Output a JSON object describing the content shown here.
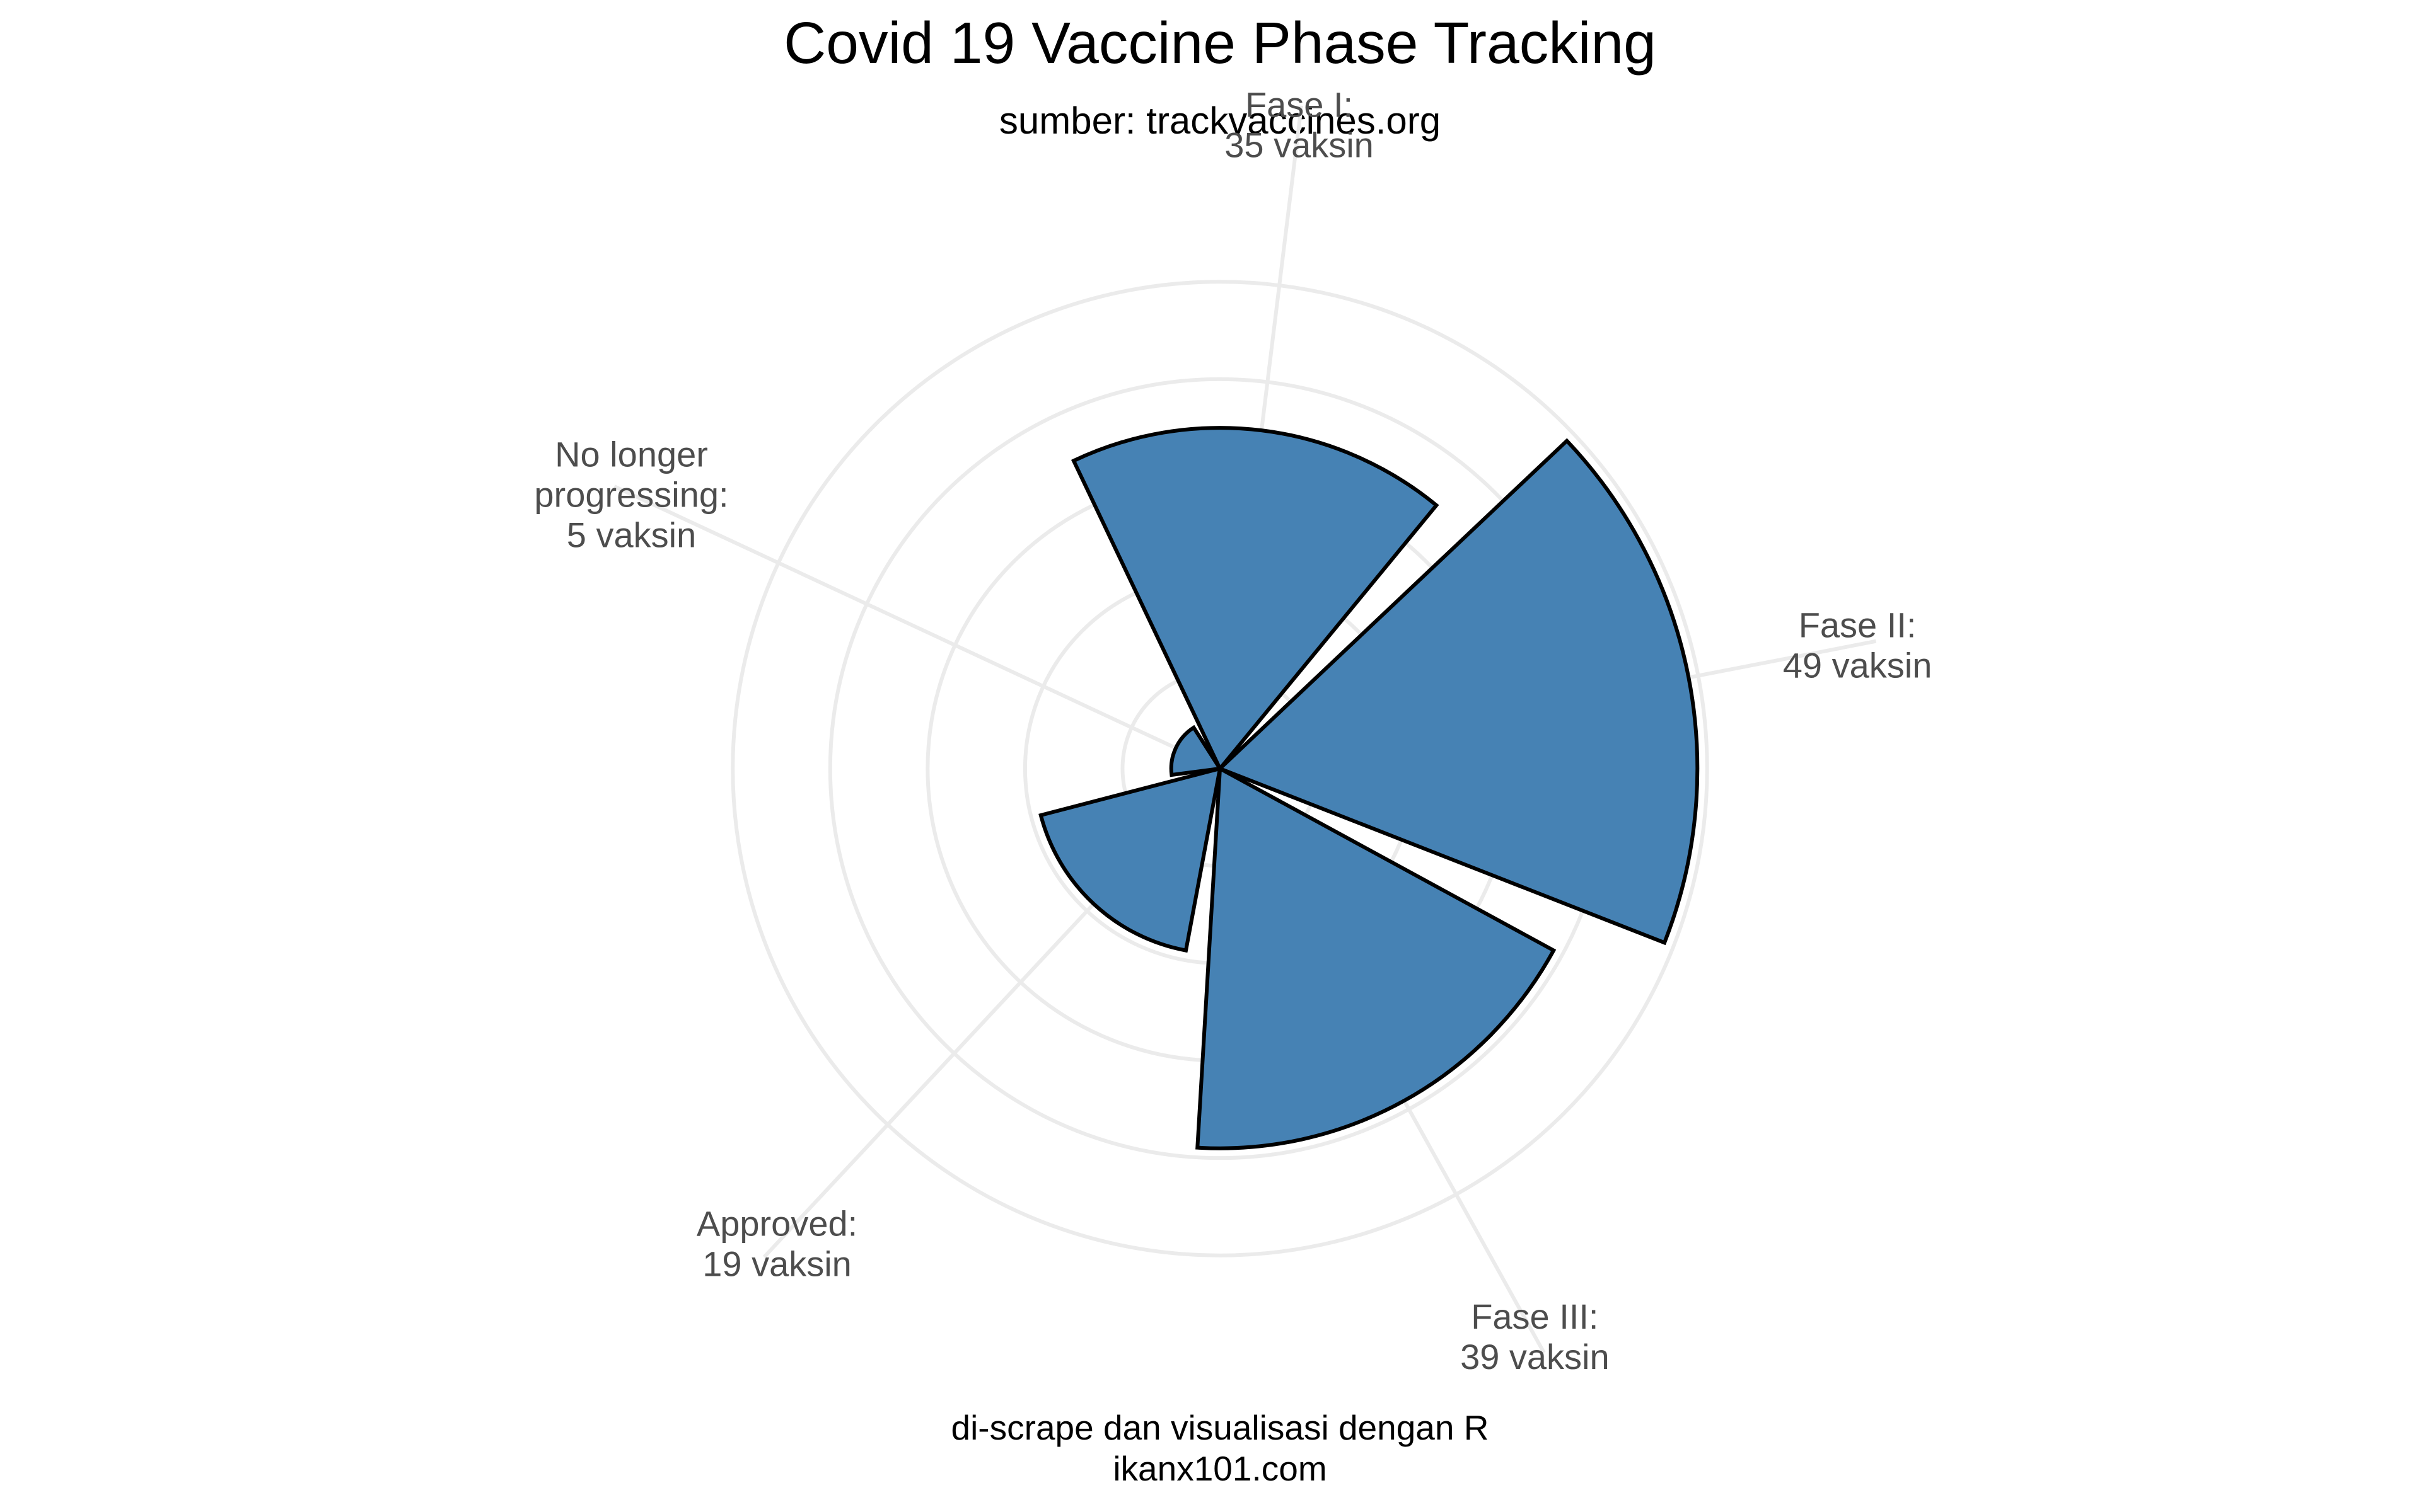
{
  "chart_data": {
    "type": "polar-bar",
    "title": "Covid 19 Vaccine Phase Tracking",
    "subtitle": "sumber: trackvaccines.org",
    "caption_lines": [
      "di-scrape dan visualisasi dengan R",
      "ikanx101.com"
    ],
    "categories": [
      "Fase I",
      "Fase II",
      "Fase III",
      "Approved",
      "No longer progressing"
    ],
    "values": [
      35,
      49,
      39,
      19,
      5
    ],
    "category_labels": [
      [
        "Fase I:",
        "35 vaksin"
      ],
      [
        "Fase II:",
        "49 vaksin"
      ],
      [
        "Fase III:",
        "39 vaksin"
      ],
      [
        "Approved:",
        "19 vaksin"
      ],
      [
        "No longer",
        "progressing:",
        "5 vaksin"
      ]
    ],
    "fill_color": "#4682b4",
    "outline_color": "#000000",
    "grid_color": "#ebebeb",
    "grid": true
  }
}
